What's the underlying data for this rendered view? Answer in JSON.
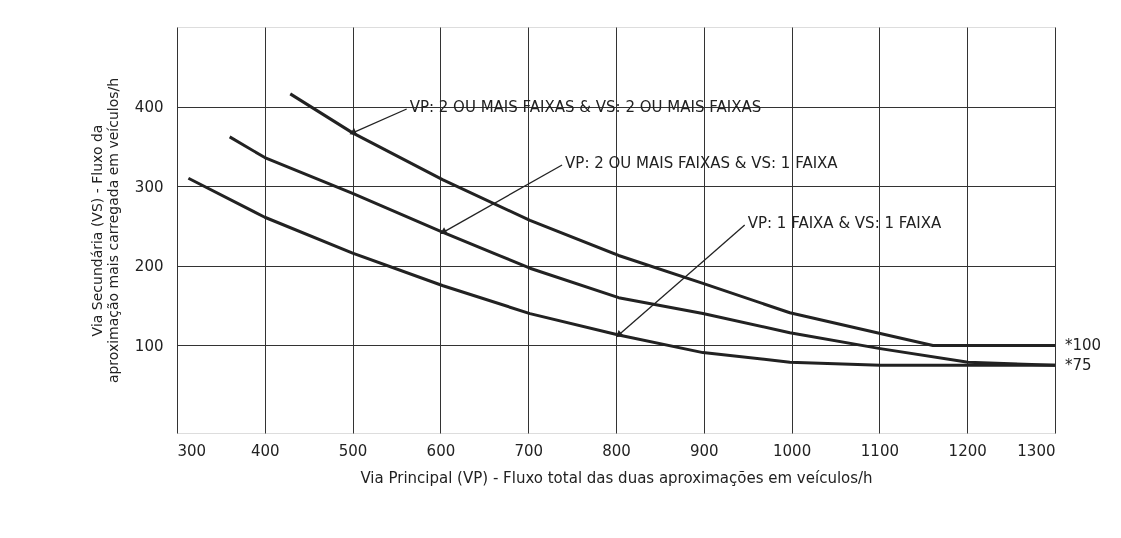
{
  "chart_data": {
    "type": "line",
    "xlabel": "Via Principal (VP) - Fluxo total das duas aproximações em veículos/h",
    "ylabel": "Via Secundária (VS) - Fluxo da aproximação mais carregada em veículos/h",
    "xlim": [
      300,
      1300
    ],
    "xticks": [
      300,
      400,
      500,
      600,
      700,
      800,
      900,
      1000,
      1100,
      1200,
      1300
    ],
    "ylim": [
      -10,
      500
    ],
    "yticks": [
      100,
      200,
      300,
      400
    ],
    "grid": true,
    "legend": false,
    "marker": "none",
    "line_style": "solid",
    "series": [
      {
        "name": "VP: 2 OU MAIS FAIXAS & VS: 2 OU MAIS FAIXAS",
        "color": "#222222",
        "x": [
          429,
          500,
          603,
          702,
          803,
          899,
          998,
          1101,
          1161,
          1300
        ],
        "values": [
          416,
          367,
          308,
          257,
          213,
          178,
          141,
          115,
          100,
          100
        ]
      },
      {
        "name": "VP: 2 OU MAIS FAIXAS & VS: 1 FAIXA",
        "color": "#222222",
        "x": [
          360,
          400,
          500,
          603,
          702,
          803,
          899,
          998,
          1101,
          1201,
          1300
        ],
        "values": [
          362,
          336,
          291,
          242,
          197,
          160,
          140,
          116,
          96,
          79,
          75
        ]
      },
      {
        "name": "VP: 1 FAIXA & VS: 1 FAIXA",
        "color": "#222222",
        "x": [
          313,
          400,
          500,
          603,
          702,
          803,
          899,
          998,
          1101,
          1300
        ],
        "values": [
          310,
          261,
          216,
          175,
          140,
          113,
          91,
          79,
          75,
          75
        ]
      }
    ],
    "annotations": [
      {
        "text": "*100",
        "x": 1300,
        "y": 100
      },
      {
        "text": "*75",
        "x": 1300,
        "y": 75
      }
    ]
  }
}
